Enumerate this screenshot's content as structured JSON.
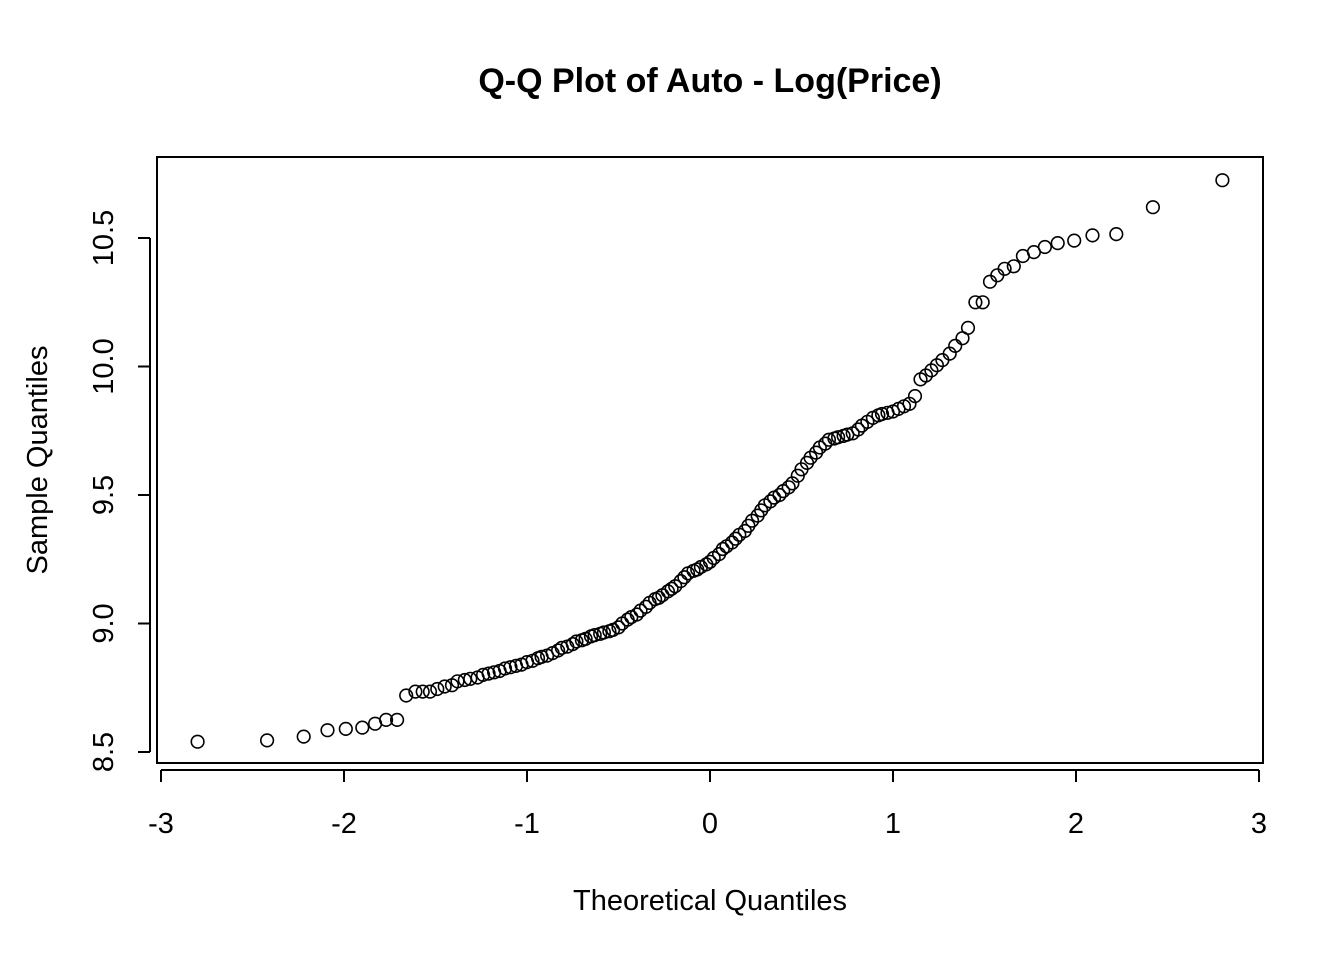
{
  "chart_data": {
    "type": "scatter",
    "title": "Q-Q Plot of Auto - Log(Price)",
    "xlabel": "Theoretical Quantiles",
    "ylabel": "Sample Quantiles",
    "xlim": [
      -3,
      3
    ],
    "ylim": [
      8.5,
      10.8
    ],
    "xticks": [
      -3,
      -2,
      -1,
      0,
      1,
      2,
      3
    ],
    "xtick_labels": [
      "-3",
      "-2",
      "-1",
      "0",
      "1",
      "2",
      "3"
    ],
    "yticks": [
      8.5,
      9.0,
      9.5,
      10.0,
      10.5
    ],
    "ytick_labels": [
      "8.5",
      "9.0",
      "9.5",
      "10.0",
      "10.5"
    ],
    "grid": false,
    "legend": "none",
    "point_style": "open-circle",
    "color": "#000000",
    "points": [
      [
        -2.8,
        8.54
      ],
      [
        -2.42,
        8.545
      ],
      [
        -2.22,
        8.56
      ],
      [
        -2.09,
        8.585
      ],
      [
        -1.99,
        8.59
      ],
      [
        -1.9,
        8.595
      ],
      [
        -1.83,
        8.61
      ],
      [
        -1.77,
        8.625
      ],
      [
        -1.71,
        8.625
      ],
      [
        -1.66,
        8.72
      ],
      [
        -1.61,
        8.735
      ],
      [
        -1.57,
        8.735
      ],
      [
        -1.53,
        8.735
      ],
      [
        -1.49,
        8.745
      ],
      [
        -1.45,
        8.755
      ],
      [
        -1.41,
        8.76
      ],
      [
        -1.38,
        8.775
      ],
      [
        -1.34,
        8.78
      ],
      [
        -1.31,
        8.785
      ],
      [
        -1.27,
        8.79
      ],
      [
        -1.24,
        8.8
      ],
      [
        -1.21,
        8.805
      ],
      [
        -1.18,
        8.81
      ],
      [
        -1.15,
        8.815
      ],
      [
        -1.12,
        8.825
      ],
      [
        -1.09,
        8.83
      ],
      [
        -1.06,
        8.835
      ],
      [
        -1.03,
        8.84
      ],
      [
        -1.0,
        8.85
      ],
      [
        -0.97,
        8.855
      ],
      [
        -0.94,
        8.865
      ],
      [
        -0.92,
        8.87
      ],
      [
        -0.89,
        8.875
      ],
      [
        -0.86,
        8.885
      ],
      [
        -0.83,
        8.895
      ],
      [
        -0.81,
        8.905
      ],
      [
        -0.78,
        8.91
      ],
      [
        -0.75,
        8.92
      ],
      [
        -0.73,
        8.93
      ],
      [
        -0.7,
        8.935
      ],
      [
        -0.68,
        8.94
      ],
      [
        -0.65,
        8.95
      ],
      [
        -0.63,
        8.955
      ],
      [
        -0.6,
        8.96
      ],
      [
        -0.58,
        8.965
      ],
      [
        -0.55,
        8.97
      ],
      [
        -0.53,
        8.975
      ],
      [
        -0.5,
        8.985
      ],
      [
        -0.48,
        9.0
      ],
      [
        -0.45,
        9.015
      ],
      [
        -0.43,
        9.025
      ],
      [
        -0.4,
        9.035
      ],
      [
        -0.38,
        9.05
      ],
      [
        -0.35,
        9.065
      ],
      [
        -0.33,
        9.08
      ],
      [
        -0.3,
        9.095
      ],
      [
        -0.28,
        9.1
      ],
      [
        -0.26,
        9.11
      ],
      [
        -0.23,
        9.125
      ],
      [
        -0.21,
        9.135
      ],
      [
        -0.19,
        9.145
      ],
      [
        -0.16,
        9.165
      ],
      [
        -0.14,
        9.18
      ],
      [
        -0.12,
        9.195
      ],
      [
        -0.09,
        9.205
      ],
      [
        -0.07,
        9.21
      ],
      [
        -0.05,
        9.22
      ],
      [
        -0.02,
        9.23
      ],
      [
        0.0,
        9.24
      ],
      [
        0.02,
        9.255
      ],
      [
        0.05,
        9.27
      ],
      [
        0.07,
        9.29
      ],
      [
        0.09,
        9.3
      ],
      [
        0.12,
        9.315
      ],
      [
        0.14,
        9.33
      ],
      [
        0.16,
        9.345
      ],
      [
        0.19,
        9.36
      ],
      [
        0.21,
        9.38
      ],
      [
        0.23,
        9.4
      ],
      [
        0.26,
        9.42
      ],
      [
        0.28,
        9.44
      ],
      [
        0.3,
        9.46
      ],
      [
        0.33,
        9.475
      ],
      [
        0.35,
        9.49
      ],
      [
        0.38,
        9.5
      ],
      [
        0.4,
        9.515
      ],
      [
        0.43,
        9.53
      ],
      [
        0.45,
        9.545
      ],
      [
        0.48,
        9.575
      ],
      [
        0.5,
        9.6
      ],
      [
        0.53,
        9.625
      ],
      [
        0.55,
        9.645
      ],
      [
        0.58,
        9.665
      ],
      [
        0.6,
        9.685
      ],
      [
        0.63,
        9.7
      ],
      [
        0.65,
        9.715
      ],
      [
        0.68,
        9.72
      ],
      [
        0.7,
        9.725
      ],
      [
        0.73,
        9.73
      ],
      [
        0.75,
        9.735
      ],
      [
        0.78,
        9.74
      ],
      [
        0.81,
        9.755
      ],
      [
        0.83,
        9.77
      ],
      [
        0.86,
        9.785
      ],
      [
        0.89,
        9.8
      ],
      [
        0.92,
        9.81
      ],
      [
        0.94,
        9.815
      ],
      [
        0.97,
        9.82
      ],
      [
        1.0,
        9.825
      ],
      [
        1.03,
        9.835
      ],
      [
        1.06,
        9.845
      ],
      [
        1.09,
        9.855
      ],
      [
        1.12,
        9.885
      ],
      [
        1.15,
        9.95
      ],
      [
        1.18,
        9.965
      ],
      [
        1.21,
        9.985
      ],
      [
        1.24,
        10.005
      ],
      [
        1.27,
        10.025
      ],
      [
        1.31,
        10.05
      ],
      [
        1.34,
        10.08
      ],
      [
        1.38,
        10.11
      ],
      [
        1.41,
        10.15
      ],
      [
        1.45,
        10.25
      ],
      [
        1.49,
        10.25
      ],
      [
        1.53,
        10.33
      ],
      [
        1.57,
        10.355
      ],
      [
        1.61,
        10.38
      ],
      [
        1.66,
        10.39
      ],
      [
        1.71,
        10.43
      ],
      [
        1.77,
        10.445
      ],
      [
        1.83,
        10.465
      ],
      [
        1.9,
        10.48
      ],
      [
        1.99,
        10.49
      ],
      [
        2.09,
        10.51
      ],
      [
        2.22,
        10.515
      ],
      [
        2.42,
        10.62
      ],
      [
        2.8,
        10.725
      ]
    ]
  }
}
